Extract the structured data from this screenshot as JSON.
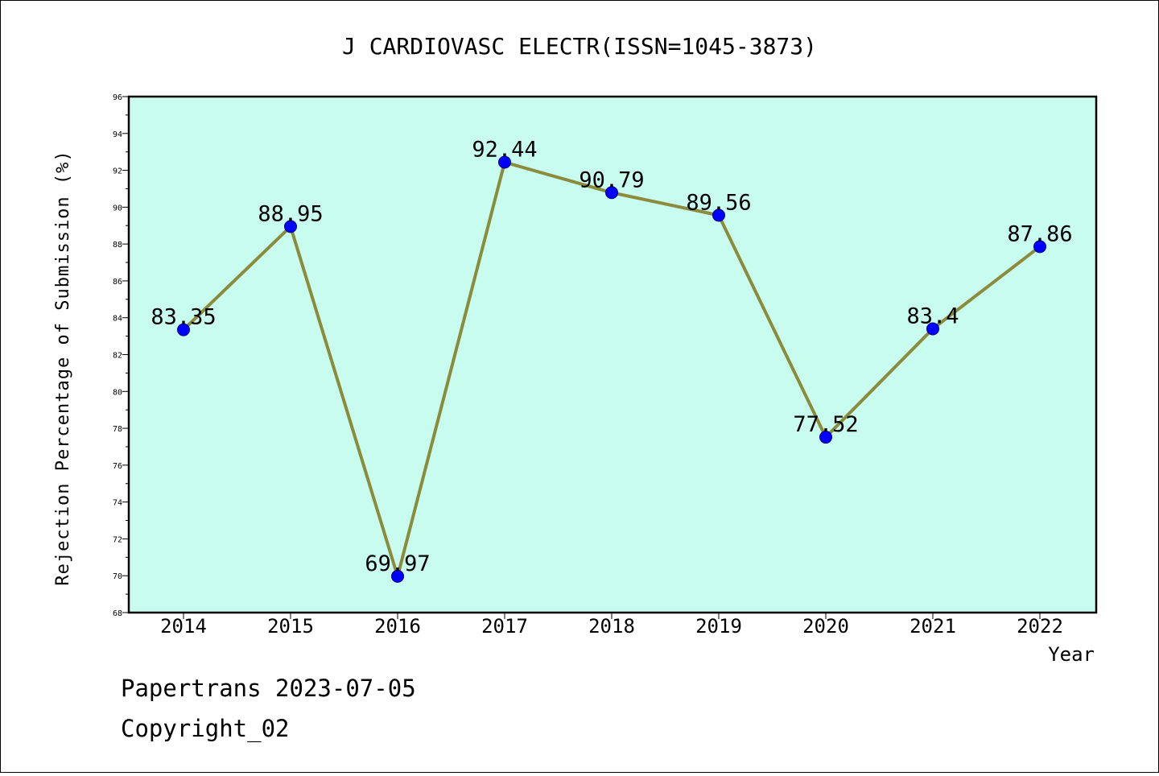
{
  "chart_data": {
    "type": "line",
    "title": "J CARDIOVASC ELECTR(ISSN=1045-3873)",
    "xlabel": "Year",
    "ylabel": "Rejection Percentage of Submission (%)",
    "categories": [
      "2014",
      "2015",
      "2016",
      "2017",
      "2018",
      "2019",
      "2020",
      "2021",
      "2022"
    ],
    "values": [
      83.35,
      88.95,
      69.97,
      92.44,
      90.79,
      89.56,
      77.52,
      83.4,
      87.86
    ],
    "data_labels": [
      "83.35",
      "88.95",
      "69.97",
      "92.44",
      "90.79",
      "89.56",
      "77.52",
      "83.4",
      "87.86"
    ],
    "ylim": [
      68,
      96
    ],
    "yticks": [
      "68",
      "70",
      "72",
      "74",
      "76",
      "78",
      "80",
      "82",
      "84",
      "86",
      "88",
      "90",
      "92",
      "94",
      "96"
    ],
    "grid": false,
    "legend": "none",
    "colors": {
      "plot_background": "#c8fcee",
      "line": "#8b8b3c",
      "marker": "#0000ff",
      "marker_edge": "#00008b"
    }
  },
  "footer": {
    "line1": "Papertrans 2023-07-05",
    "line2": "Copyright_02"
  }
}
